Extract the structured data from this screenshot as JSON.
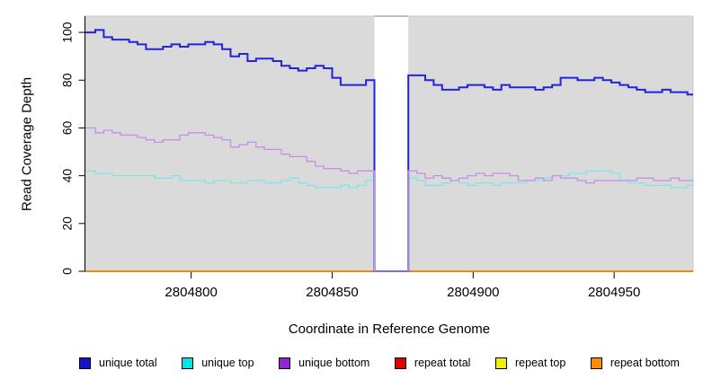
{
  "chart_data": {
    "type": "line",
    "subtype": "step-coverage",
    "title": "",
    "xlabel": "Coordinate in Reference Genome",
    "ylabel": "Read Coverage Depth",
    "xlim": [
      2804762.5,
      2804978
    ],
    "ylim": [
      0,
      106.8
    ],
    "x_ticks": [
      2804800,
      2804850,
      2804900,
      2804950
    ],
    "y_ticks": [
      0,
      20,
      40,
      60,
      80,
      100
    ],
    "grid": false,
    "legend_position": "bottom",
    "panel_background": "#dadada",
    "panel_border_color": "#c9c9c9",
    "axis_color": "#000000",
    "x_start": 2804763,
    "x_step": 3,
    "dropout_region": {
      "start": 2804865,
      "end": 2804877,
      "fill": "#ffffff",
      "top_edge_color": "#999999"
    },
    "draw_order": [
      "repeat total",
      "repeat top",
      "repeat bottom",
      "__dropout__",
      "unique top",
      "unique total",
      "unique bottom"
    ],
    "series": [
      {
        "name": "unique total",
        "color": "#1414cc",
        "line_color": "#2323dc",
        "line_width": 2,
        "values": [
          100,
          101,
          98,
          97,
          97,
          96,
          95,
          93,
          93,
          94,
          95,
          94,
          95,
          95,
          96,
          95,
          93,
          90,
          91,
          88,
          89,
          89,
          88,
          86,
          85,
          84,
          85,
          86,
          85,
          81,
          78,
          78,
          78,
          80,
          0,
          0,
          0,
          0,
          82,
          82,
          80,
          78,
          76,
          76,
          77,
          78,
          78,
          77,
          76,
          78,
          77,
          77,
          77,
          76,
          77,
          78,
          81,
          81,
          80,
          80,
          81,
          80,
          79,
          78,
          77,
          76,
          75,
          75,
          76,
          75,
          75,
          74
        ]
      },
      {
        "name": "unique top",
        "color": "#00e5e5",
        "line_color": "#7fe5e5",
        "line_width": 1.3,
        "values": [
          42,
          41,
          41,
          40,
          40,
          40,
          40,
          40,
          39,
          39,
          40,
          38,
          38,
          38,
          37,
          38,
          38,
          37,
          37,
          38,
          38,
          37,
          37,
          38,
          39,
          37,
          36,
          35,
          35,
          35,
          36,
          35,
          36,
          38,
          0,
          0,
          0,
          0,
          39,
          38,
          36,
          36,
          37,
          38,
          37,
          36,
          37,
          37,
          36,
          37,
          37,
          37,
          38,
          38,
          39,
          40,
          40,
          41,
          41,
          42,
          42,
          42,
          41,
          38,
          37,
          37,
          36,
          36,
          36,
          35,
          35,
          36
        ]
      },
      {
        "name": "unique bottom",
        "color": "#9326d2",
        "line_color": "#c490e4",
        "line_width": 1.3,
        "values": [
          60,
          58,
          59,
          58,
          57,
          57,
          56,
          55,
          54,
          55,
          55,
          57,
          58,
          58,
          57,
          56,
          55,
          52,
          53,
          54,
          52,
          51,
          51,
          49,
          48,
          48,
          46,
          44,
          43,
          43,
          42,
          41,
          42,
          42,
          0,
          0,
          0,
          0,
          42,
          41,
          39,
          40,
          39,
          38,
          39,
          40,
          41,
          40,
          41,
          41,
          40,
          38,
          38,
          39,
          38,
          40,
          39,
          39,
          38,
          37,
          38,
          38,
          38,
          38,
          38,
          39,
          39,
          38,
          38,
          39,
          38,
          38
        ]
      },
      {
        "name": "repeat total",
        "color": "#e00000",
        "line_color": "#e00000",
        "line_width": 1.3,
        "constant": 0
      },
      {
        "name": "repeat top",
        "color": "#f0f000",
        "line_color": "#f0f000",
        "line_width": 1.3,
        "constant": 0
      },
      {
        "name": "repeat bottom",
        "color": "#ff8c00",
        "line_color": "#ff8c00",
        "line_width": 1.7,
        "constant": 0
      }
    ]
  }
}
